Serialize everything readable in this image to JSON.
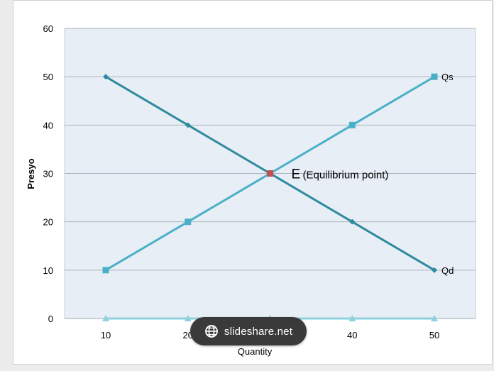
{
  "chart_data": {
    "type": "line",
    "xlabel": "Quantity",
    "ylabel": "Presyo",
    "categories": [
      10,
      20,
      30,
      40,
      50
    ],
    "ylim": [
      0,
      60
    ],
    "yticks": [
      0,
      10,
      20,
      30,
      40,
      50,
      60
    ],
    "grid": true,
    "series": [
      {
        "name": "Qd",
        "values": [
          50,
          40,
          30,
          20,
          10
        ],
        "color": "#2e8a9e",
        "marker": "diamond"
      },
      {
        "name": "Qs",
        "values": [
          10,
          20,
          30,
          40,
          50
        ],
        "color": "#4ab0c8",
        "marker": "square"
      },
      {
        "name": "",
        "values": [
          0,
          0,
          0,
          0,
          0
        ],
        "color": "#8fd0de",
        "marker": "triangle"
      }
    ],
    "annotations": [
      {
        "x": 30,
        "y": 30,
        "letter": "E",
        "text": "(Equilibrium point)",
        "color": "#c0504d"
      }
    ]
  },
  "colors": {
    "plot_background": "#e8eef5",
    "grid": "#a9b4bf",
    "axis_text": "#000000"
  },
  "watermark": {
    "text": "slideshare.net",
    "icon": "globe-icon"
  }
}
